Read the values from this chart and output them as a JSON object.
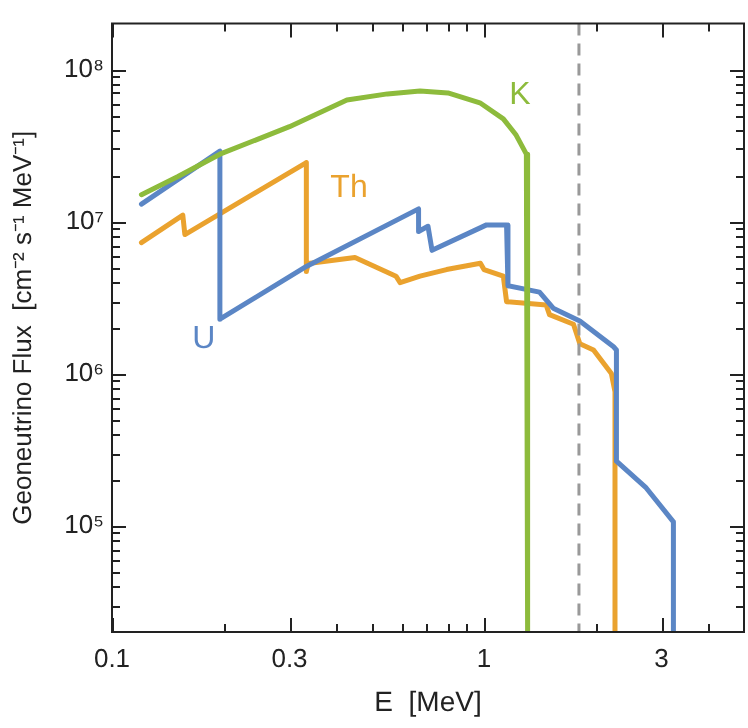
{
  "chart_data": {
    "type": "line",
    "xlabel": "E  [MeV]",
    "ylabel": "Geoneutrino Flux  [cm⁻² s⁻¹ MeV⁻¹]",
    "log": "xy",
    "grid": false,
    "legend": false,
    "marker": "none",
    "line_style": "solid",
    "xlim": [
      0.1,
      5
    ],
    "ylim": [
      20000,
      200000000
    ],
    "xticks": [
      0.1,
      {
        "value": 0.2,
        "label": null
      },
      0.3,
      {
        "value": 0.4,
        "label": null
      },
      {
        "value": 0.5,
        "label": null
      },
      {
        "value": 0.6,
        "label": null
      },
      {
        "value": 0.7,
        "label": null
      },
      {
        "value": 0.8,
        "label": null
      },
      {
        "value": 0.9,
        "label": null
      },
      1,
      {
        "value": 2,
        "label": null
      },
      3,
      {
        "value": 4,
        "label": null
      }
    ],
    "yticks": [
      {
        "value": 30000,
        "label": null
      },
      {
        "value": 40000,
        "label": null
      },
      {
        "value": 50000,
        "label": null
      },
      {
        "value": 60000,
        "label": null
      },
      {
        "value": 70000,
        "label": null
      },
      {
        "value": 80000,
        "label": null
      },
      {
        "value": 90000,
        "label": null
      },
      {
        "value": 100000,
        "label": "10⁵"
      },
      {
        "value": 200000,
        "label": null
      },
      {
        "value": 300000,
        "label": null
      },
      {
        "value": 400000,
        "label": null
      },
      {
        "value": 500000,
        "label": null
      },
      {
        "value": 600000,
        "label": null
      },
      {
        "value": 700000,
        "label": null
      },
      {
        "value": 800000,
        "label": null
      },
      {
        "value": 900000,
        "label": null
      },
      {
        "value": 1000000,
        "label": "10⁶"
      },
      {
        "value": 2000000,
        "label": null
      },
      {
        "value": 3000000,
        "label": null
      },
      {
        "value": 4000000,
        "label": null
      },
      {
        "value": 5000000,
        "label": null
      },
      {
        "value": 6000000,
        "label": null
      },
      {
        "value": 7000000,
        "label": null
      },
      {
        "value": 8000000,
        "label": null
      },
      {
        "value": 9000000,
        "label": null
      },
      {
        "value": 10000000,
        "label": "10⁷"
      },
      {
        "value": 20000000,
        "label": null
      },
      {
        "value": 30000000,
        "label": null
      },
      {
        "value": 40000000,
        "label": null
      },
      {
        "value": 50000000,
        "label": null
      },
      {
        "value": 60000000,
        "label": null
      },
      {
        "value": 70000000,
        "label": null
      },
      {
        "value": 80000000,
        "label": null
      },
      {
        "value": 90000000,
        "label": null
      },
      {
        "value": 100000000,
        "label": "10⁸"
      }
    ],
    "ref_lines": [
      {
        "axis": "x",
        "value": 1.8,
        "color": "#999999",
        "line_style": "dashed"
      }
    ],
    "series": [
      {
        "name": "K",
        "color": "#8dbb3c",
        "x": [
          0.12,
          0.15,
          0.195,
          0.3,
          0.428,
          0.55,
          0.673,
          0.8,
          0.975,
          1.127,
          1.22,
          1.3,
          1.31
        ],
        "values": [
          15000000,
          19700000,
          27700000,
          42000000,
          63000000,
          69000000,
          72000000,
          70000000,
          60300000,
          47300000,
          37000000,
          27700000,
          20000
        ]
      },
      {
        "name": "U",
        "color": "#5b86c5",
        "x": [
          0.12,
          0.195,
          0.195,
          0.333,
          0.667,
          0.667,
          0.707,
          0.725,
          1.016,
          1.15,
          1.16,
          1.41,
          1.535,
          1.81,
          2.23,
          2.27,
          2.27,
          2.73,
          3.23,
          3.23
        ],
        "values": [
          13000000,
          29000000,
          2280000,
          5060000,
          12100000,
          8600000,
          9300000,
          6460000,
          9500000,
          9500000,
          3780000,
          3430000,
          2690000,
          2220000,
          1500000,
          1430000,
          266000,
          177000,
          106000,
          20000
        ]
      },
      {
        "name": "Th",
        "color": "#eaa22e",
        "x": [
          0.12,
          0.155,
          0.157,
          0.333,
          0.333,
          0.337,
          0.45,
          0.58,
          0.595,
          0.673,
          0.793,
          0.978,
          1.0,
          1.127,
          1.15,
          1.47,
          1.5,
          1.74,
          1.81,
          1.97,
          2.2,
          2.25,
          2.25
        ],
        "values": [
          7260000,
          11000000,
          8200000,
          24400000,
          4690000,
          5300000,
          5800000,
          4370000,
          3960000,
          4370000,
          4830000,
          5310000,
          4830000,
          4370000,
          2970000,
          2820000,
          2440000,
          2110000,
          1570000,
          1430000,
          1000000,
          760000,
          20000
        ]
      }
    ]
  }
}
